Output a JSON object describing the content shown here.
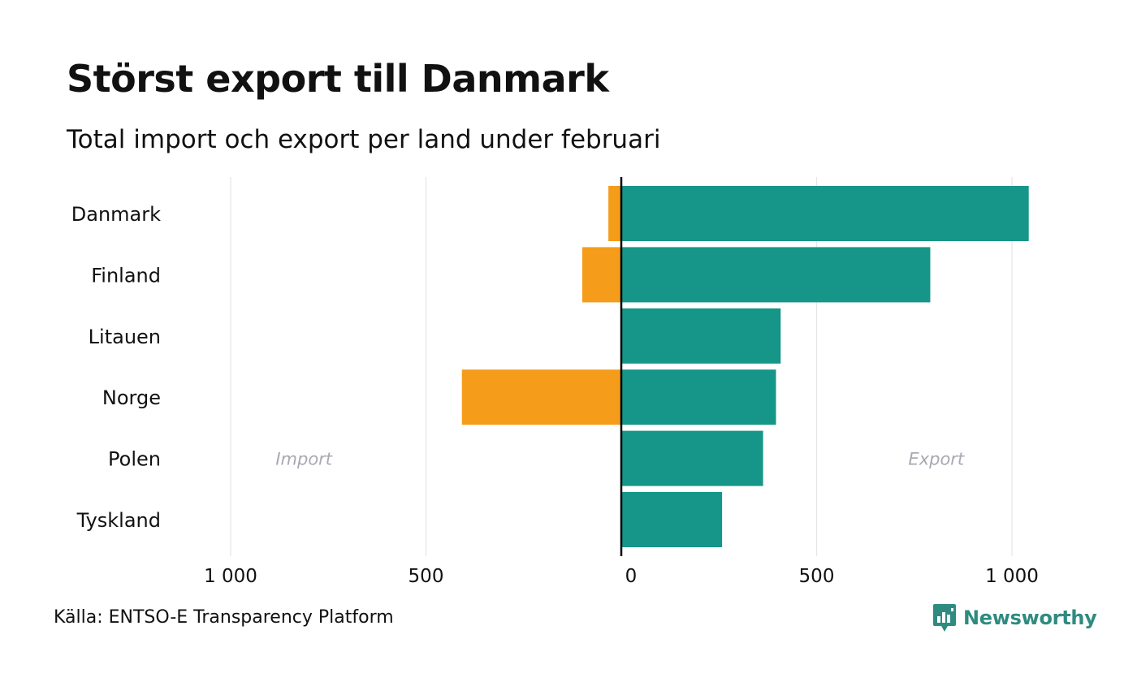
{
  "title": "Störst export till Danmark",
  "subtitle": "Total import och export per land under februari",
  "source": "Källa: ENTSO-E Transparency Platform",
  "logo": {
    "text": "Newsworthy",
    "icon": "newsworthy-logo-icon"
  },
  "colors": {
    "import": "#f59c1a",
    "export": "#159688",
    "grid": "#e6e6e6",
    "axis": "#000000",
    "annotation": "#a9a9b3",
    "logo": "#2e8b80"
  },
  "chart_data": {
    "type": "bar",
    "orientation": "horizontal",
    "categories": [
      "Danmark",
      "Finland",
      "Litauen",
      "Norge",
      "Polen",
      "Tyskland"
    ],
    "series": [
      {
        "name": "Import",
        "values": [
          -33,
          -100,
          0,
          -408,
          0,
          0
        ]
      },
      {
        "name": "Export",
        "values": [
          1043,
          791,
          408,
          396,
          363,
          258
        ]
      }
    ],
    "xlim": [
      -1000,
      1000
    ],
    "xticks": [
      -1000,
      -500,
      0,
      500,
      1000
    ],
    "xtick_labels": [
      "1 000",
      "500",
      "0",
      "500",
      "1 000"
    ],
    "annotations": [
      {
        "text": "Import",
        "x": -800,
        "category": "Polen"
      },
      {
        "text": "Export",
        "x": 800,
        "category": "Polen"
      }
    ],
    "grid": true,
    "legend": "none",
    "xlabel": "",
    "ylabel": ""
  }
}
